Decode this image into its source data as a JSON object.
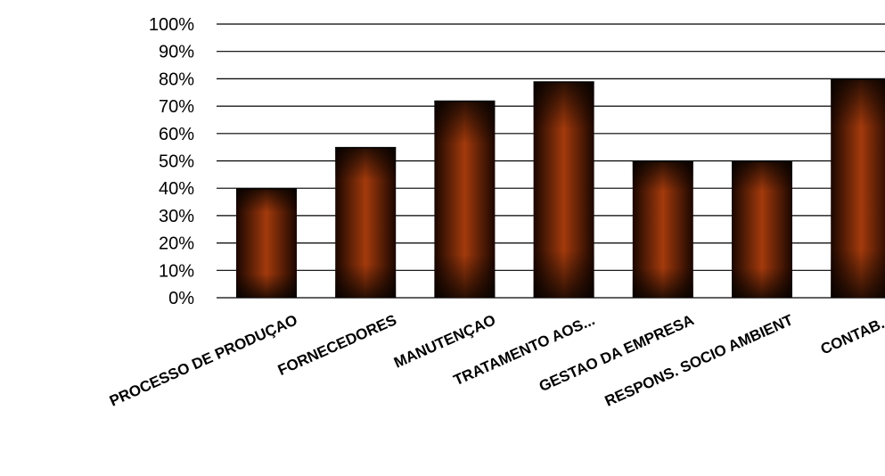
{
  "chart_data": {
    "type": "bar",
    "title": "",
    "xlabel": "",
    "ylabel": "",
    "categories": [
      "PROCESSO DE PRODUÇAO",
      "FORNECEDORES",
      "MANUTENÇAO",
      "TRATAMENTO AOS...",
      "GESTAO DA EMPRESA",
      "RESPONS. SOCIO AMBIENT",
      "CONTAB..."
    ],
    "values": [
      40,
      55,
      72,
      79,
      50,
      50,
      80
    ],
    "ylim": [
      0,
      100
    ],
    "yticks": [
      "0%",
      "10%",
      "20%",
      "30%",
      "40%",
      "50%",
      "60%",
      "70%",
      "80%",
      "90%",
      "100%"
    ],
    "grid": true,
    "legend": "none",
    "colors": {
      "bar_center": "#a33a0c",
      "bar_edge": "#1a0600",
      "gridline": "#000000"
    }
  }
}
